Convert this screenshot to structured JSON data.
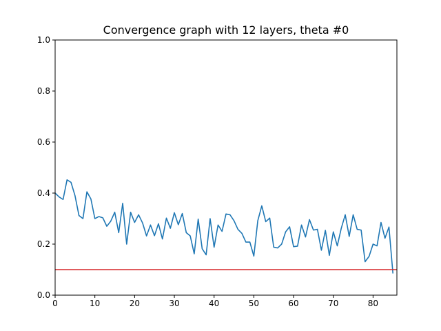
{
  "chart_data": {
    "type": "line",
    "title": "Convergence graph with 12 layers, theta #0",
    "xlabel": "",
    "ylabel": "",
    "xlim": [
      0,
      86
    ],
    "ylim": [
      0.0,
      1.0
    ],
    "grid": false,
    "xticks": [
      0,
      10,
      20,
      30,
      40,
      50,
      60,
      70,
      80
    ],
    "xtick_labels": [
      "0",
      "10",
      "20",
      "30",
      "40",
      "50",
      "60",
      "70",
      "80"
    ],
    "yticks": [
      0.0,
      0.2,
      0.4,
      0.6,
      0.8,
      1.0
    ],
    "ytick_labels": [
      "0.0",
      "0.2",
      "0.4",
      "0.6",
      "0.8",
      "1.0"
    ],
    "series": [
      {
        "color": "#1f77b4",
        "x": [
          0,
          1,
          2,
          3,
          4,
          5,
          6,
          7,
          8,
          9,
          10,
          11,
          12,
          13,
          14,
          15,
          16,
          17,
          18,
          19,
          20,
          21,
          22,
          23,
          24,
          25,
          26,
          27,
          28,
          29,
          30,
          31,
          32,
          33,
          34,
          35,
          36,
          37,
          38,
          39,
          40,
          41,
          42,
          43,
          44,
          45,
          46,
          47,
          48,
          49,
          50,
          51,
          52,
          53,
          54,
          55,
          56,
          57,
          58,
          59,
          60,
          61,
          62,
          63,
          64,
          65,
          66,
          67,
          68,
          69,
          70,
          71,
          72,
          73,
          74,
          75,
          76,
          77,
          78,
          79,
          80,
          81,
          82,
          83,
          84,
          85
        ],
        "y": [
          0.4,
          0.385,
          0.375,
          0.452,
          0.442,
          0.39,
          0.312,
          0.3,
          0.405,
          0.377,
          0.3,
          0.308,
          0.303,
          0.27,
          0.29,
          0.325,
          0.245,
          0.36,
          0.2,
          0.325,
          0.285,
          0.315,
          0.283,
          0.232,
          0.275,
          0.233,
          0.28,
          0.22,
          0.302,
          0.262,
          0.323,
          0.276,
          0.32,
          0.245,
          0.232,
          0.162,
          0.298,
          0.182,
          0.158,
          0.3,
          0.188,
          0.275,
          0.25,
          0.318,
          0.315,
          0.292,
          0.258,
          0.242,
          0.208,
          0.208,
          0.153,
          0.292,
          0.35,
          0.288,
          0.302,
          0.188,
          0.185,
          0.2,
          0.248,
          0.268,
          0.19,
          0.192,
          0.275,
          0.228,
          0.296,
          0.255,
          0.258,
          0.176,
          0.254,
          0.156,
          0.248,
          0.193,
          0.262,
          0.315,
          0.23,
          0.315,
          0.258,
          0.255,
          0.131,
          0.152,
          0.2,
          0.193,
          0.285,
          0.223,
          0.267,
          0.085
        ]
      },
      {
        "color": "#d62728",
        "x": [
          0,
          86
        ],
        "y": [
          0.1,
          0.1
        ]
      }
    ]
  }
}
